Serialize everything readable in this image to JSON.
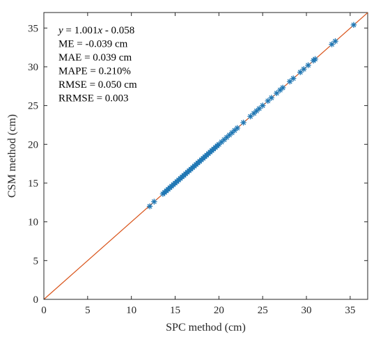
{
  "chart_data": {
    "type": "scatter",
    "title": "",
    "xlabel": "SPC method (cm)",
    "ylabel": "CSM method (cm)",
    "xlim": [
      0,
      37
    ],
    "ylim": [
      0,
      37
    ],
    "xticks": [
      0,
      5,
      10,
      15,
      20,
      25,
      30,
      35
    ],
    "yticks": [
      0,
      5,
      10,
      15,
      20,
      25,
      30,
      35
    ],
    "grid": false,
    "colors": {
      "points": "#1f77b4",
      "fit_line": "#d95319",
      "axes": "#262626"
    },
    "annotations": [
      {
        "prefix": "y",
        "text": " = 1.001x - 0.058"
      },
      {
        "text": "ME = -0.039 cm"
      },
      {
        "text": "MAE = 0.039 cm"
      },
      {
        "text": "MAPE = 0.210%"
      },
      {
        "text": "RMSE = 0.050 cm"
      },
      {
        "text": "RRMSE = 0.003"
      }
    ],
    "fit_line": {
      "slope": 1.001,
      "intercept": -0.058
    },
    "series": [
      {
        "marker": "asterisk",
        "points": [
          [
            12.1,
            12.0
          ],
          [
            12.6,
            12.6
          ],
          [
            13.6,
            13.6
          ],
          [
            13.8,
            13.8
          ],
          [
            14.0,
            14.0
          ],
          [
            14.2,
            14.2
          ],
          [
            14.4,
            14.4
          ],
          [
            14.6,
            14.6
          ],
          [
            14.8,
            14.8
          ],
          [
            15.0,
            15.0
          ],
          [
            15.2,
            15.2
          ],
          [
            15.4,
            15.4
          ],
          [
            15.6,
            15.6
          ],
          [
            15.8,
            15.8
          ],
          [
            16.0,
            16.0
          ],
          [
            16.2,
            16.2
          ],
          [
            16.4,
            16.4
          ],
          [
            16.6,
            16.6
          ],
          [
            16.8,
            16.8
          ],
          [
            17.0,
            17.0
          ],
          [
            17.2,
            17.2
          ],
          [
            17.4,
            17.4
          ],
          [
            17.6,
            17.6
          ],
          [
            17.8,
            17.8
          ],
          [
            18.0,
            18.0
          ],
          [
            18.2,
            18.2
          ],
          [
            18.4,
            18.4
          ],
          [
            18.6,
            18.6
          ],
          [
            18.8,
            18.8
          ],
          [
            19.0,
            19.0
          ],
          [
            19.2,
            19.2
          ],
          [
            19.4,
            19.4
          ],
          [
            19.6,
            19.6
          ],
          [
            19.8,
            19.8
          ],
          [
            20.0,
            20.0
          ],
          [
            20.3,
            20.3
          ],
          [
            20.6,
            20.6
          ],
          [
            20.9,
            20.9
          ],
          [
            21.2,
            21.2
          ],
          [
            21.5,
            21.5
          ],
          [
            21.8,
            21.8
          ],
          [
            22.1,
            22.1
          ],
          [
            22.8,
            22.8
          ],
          [
            23.6,
            23.6
          ],
          [
            24.0,
            24.0
          ],
          [
            24.3,
            24.3
          ],
          [
            24.6,
            24.6
          ],
          [
            25.0,
            25.0
          ],
          [
            25.6,
            25.6
          ],
          [
            26.0,
            26.0
          ],
          [
            26.6,
            26.6
          ],
          [
            27.0,
            27.0
          ],
          [
            27.3,
            27.3
          ],
          [
            28.1,
            28.1
          ],
          [
            28.5,
            28.5
          ],
          [
            29.3,
            29.3
          ],
          [
            29.7,
            29.7
          ],
          [
            30.2,
            30.2
          ],
          [
            30.8,
            30.8
          ],
          [
            31.0,
            31.0
          ],
          [
            32.9,
            32.9
          ],
          [
            33.3,
            33.3
          ],
          [
            35.4,
            35.4
          ]
        ]
      }
    ]
  }
}
